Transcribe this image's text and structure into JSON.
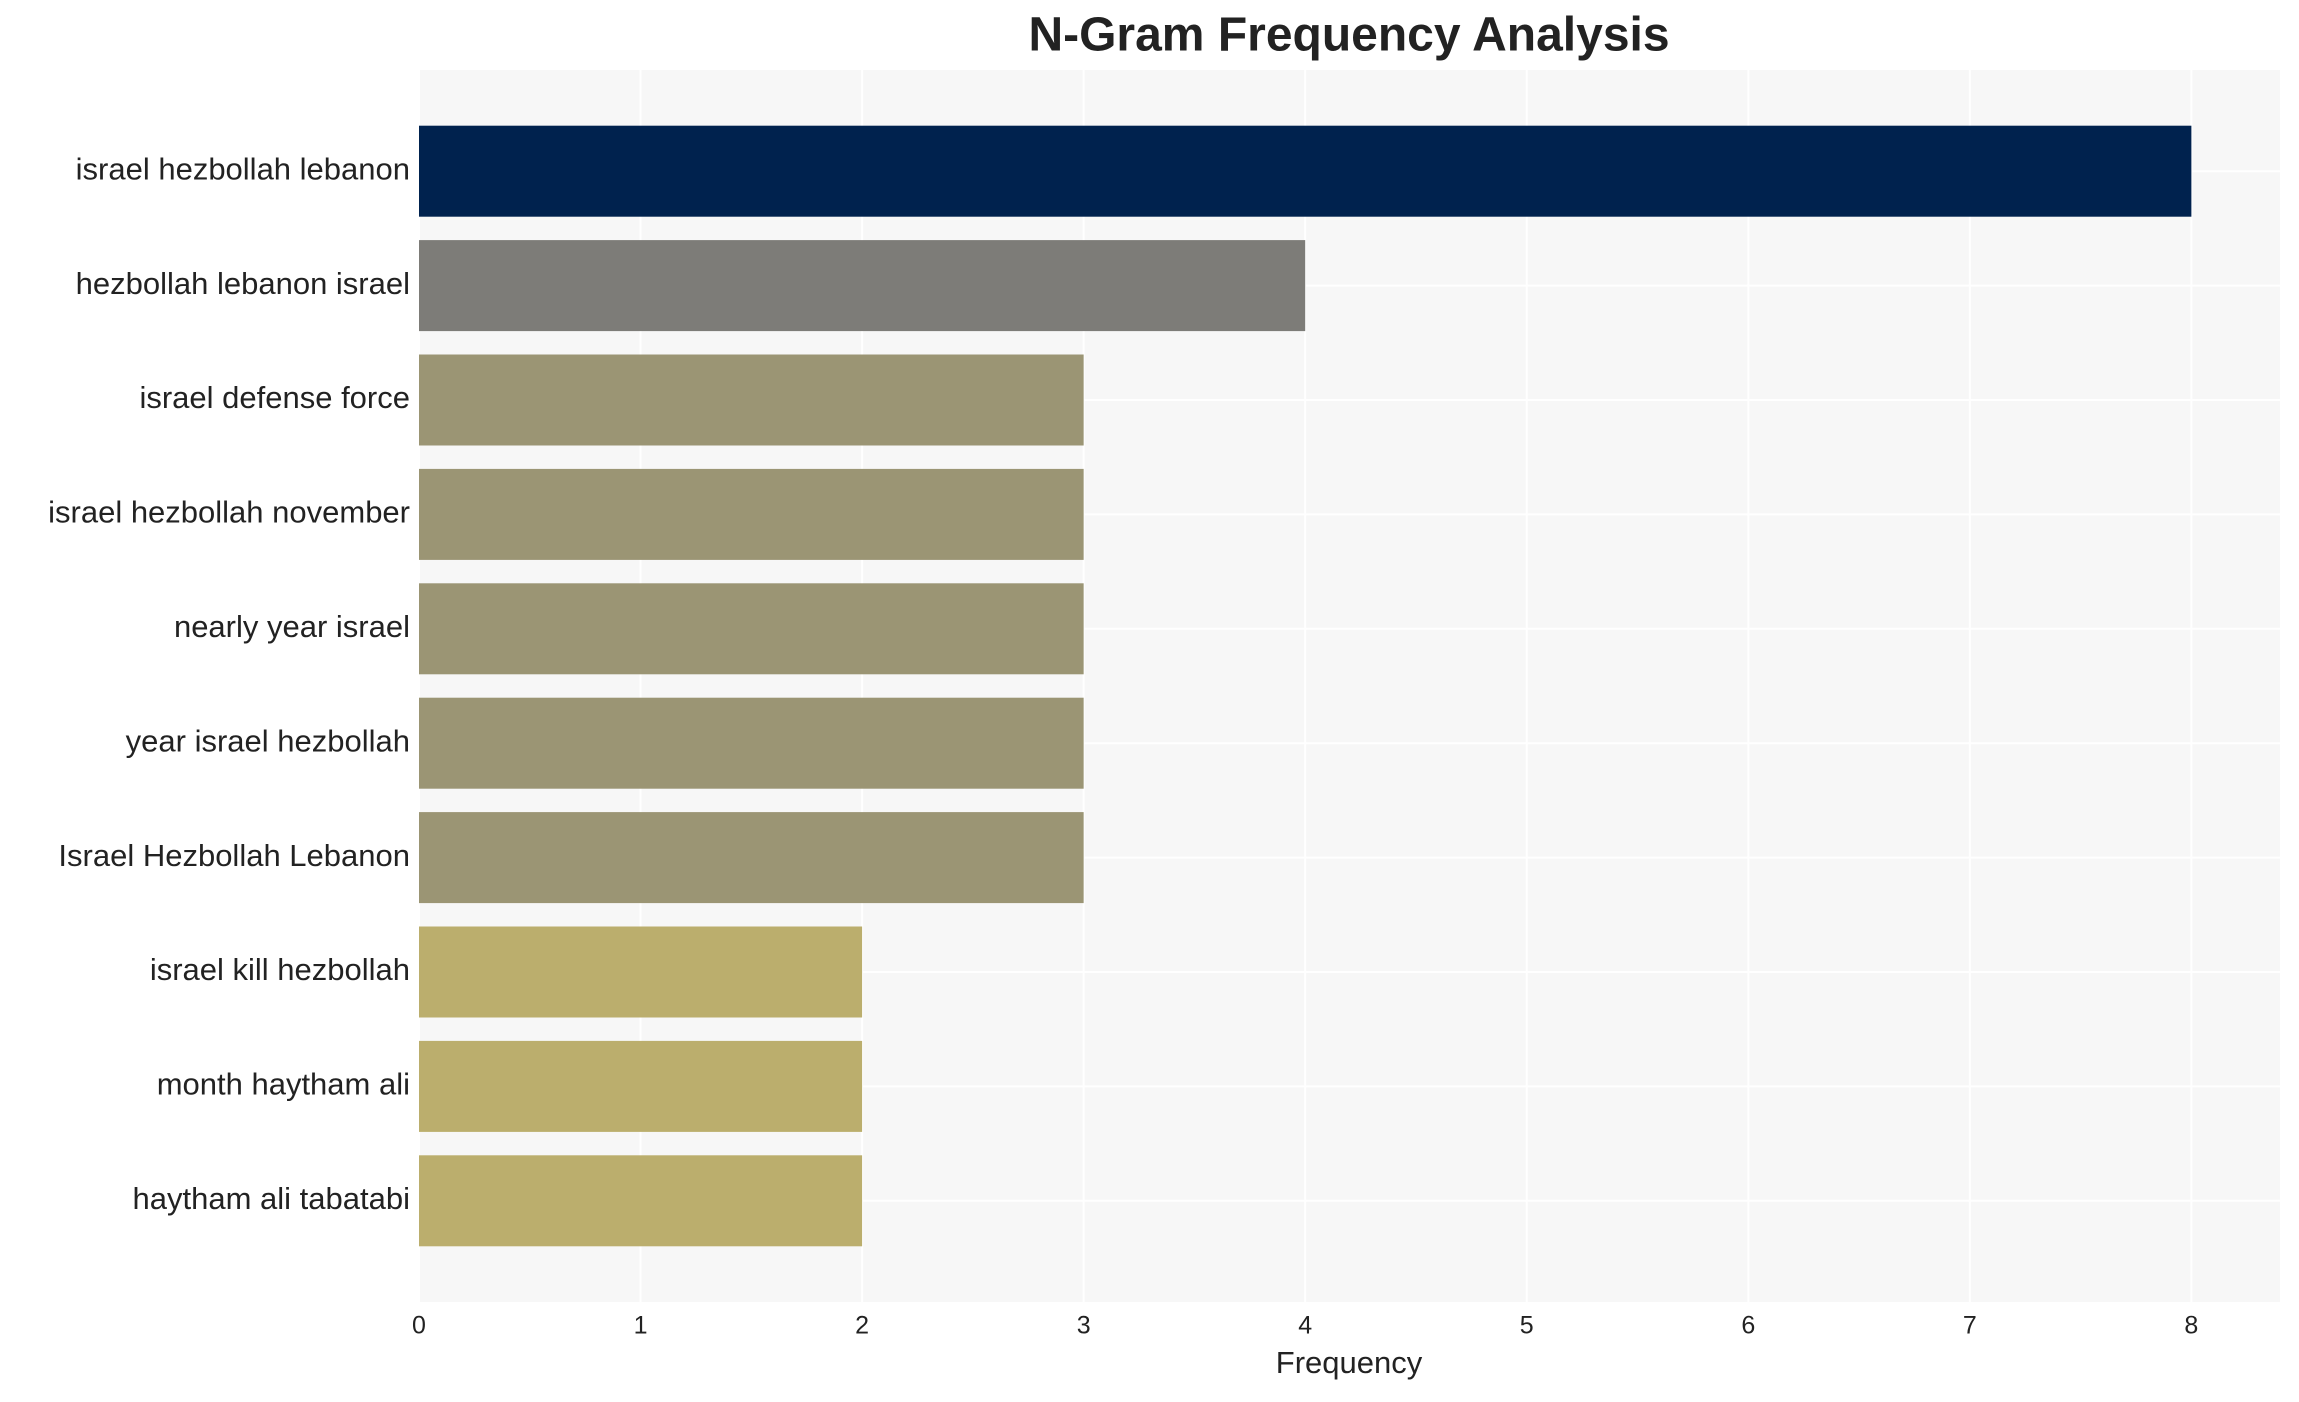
{
  "chart_data": {
    "type": "bar",
    "orientation": "horizontal",
    "title": "N-Gram Frequency Analysis",
    "x_label": "Frequency",
    "categories": [
      "israel hezbollah lebanon",
      "hezbollah lebanon israel",
      "israel defense force",
      "israel hezbollah november",
      "nearly year israel",
      "year israel hezbollah",
      "Israel Hezbollah Lebanon",
      "israel kill hezbollah",
      "month haytham ali",
      "haytham ali tabatabi"
    ],
    "values": [
      8,
      4,
      3,
      3,
      3,
      3,
      3,
      2,
      2,
      2
    ],
    "colors": [
      "#00224e",
      "#7d7c78",
      "#9b9574",
      "#9b9574",
      "#9b9574",
      "#9b9574",
      "#9b9574",
      "#bbae6d",
      "#bbae6d",
      "#bbae6d"
    ],
    "xlim": [
      0,
      8.4
    ],
    "xticks": [
      0,
      1,
      2,
      3,
      4,
      5,
      6,
      7,
      8
    ],
    "grid": true
  }
}
